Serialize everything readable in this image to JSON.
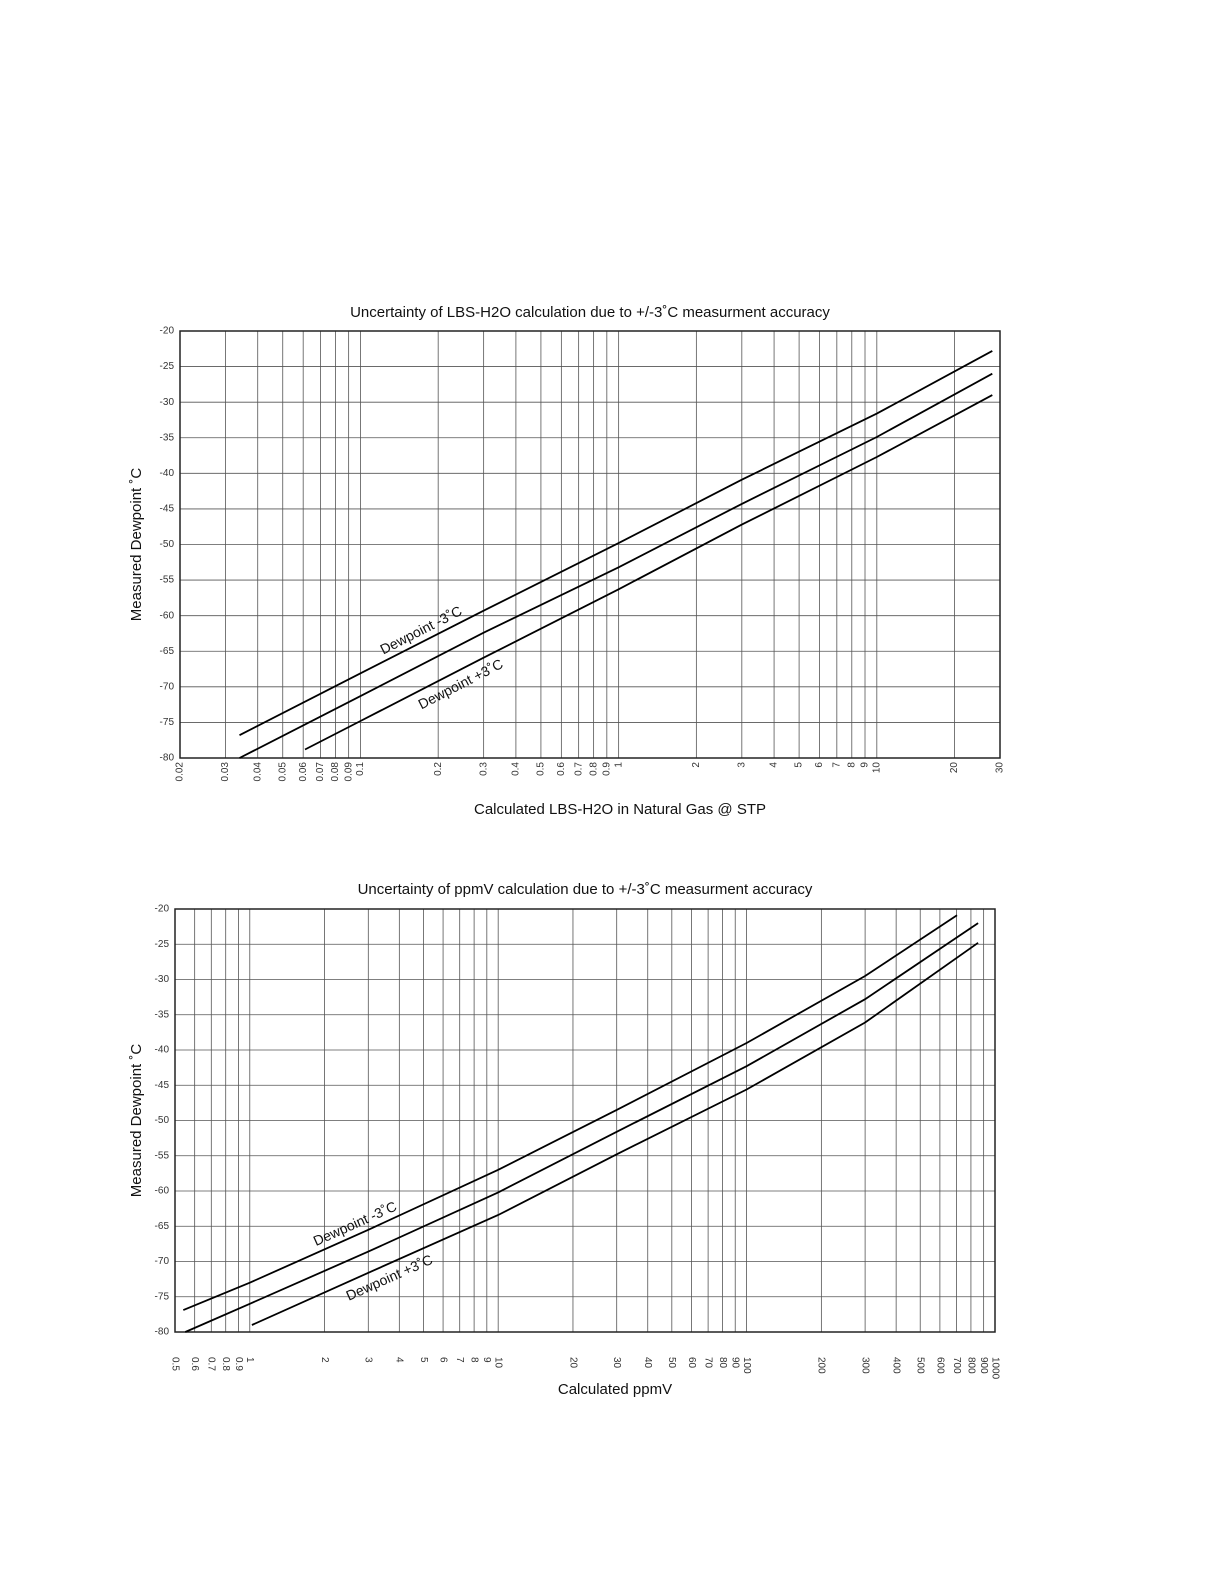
{
  "chart_data": [
    {
      "type": "line",
      "title": "Uncertainty of LBS-H2O calculation due to +/-3˚C measurment accuracy",
      "x_label": "Calculated LBS-H2O in Natural Gas @ STP",
      "y_label": "Measured Dewpoint ˚C",
      "xscale": "log",
      "grid": true,
      "xlim": [
        0.02,
        30
      ],
      "ylim": [
        -80,
        -20
      ],
      "xticks": [
        0.02,
        0.03,
        0.04,
        0.05,
        0.06,
        0.07,
        0.08,
        0.09,
        0.1,
        0.2,
        0.3,
        0.4,
        0.5,
        0.6,
        0.7,
        0.8,
        0.9,
        1,
        2,
        3,
        4,
        5,
        6,
        7,
        8,
        9,
        10,
        20,
        30
      ],
      "yticks": [
        -80,
        -75,
        -70,
        -65,
        -60,
        -55,
        -50,
        -45,
        -40,
        -35,
        -30,
        -25,
        -20
      ],
      "series": [
        {
          "label": "Dewpoint -3˚C",
          "color": "#000000",
          "x": [
            0.034,
            0.1,
            0.3,
            1,
            3,
            10,
            28
          ],
          "values": [
            -76.8,
            -68.1,
            -59.3,
            -49.8,
            -40.9,
            -31.6,
            -22.8
          ]
        },
        {
          "color": "#000000",
          "x": [
            0.034,
            0.1,
            0.3,
            1,
            3,
            10,
            28
          ],
          "values": [
            -80,
            -71.3,
            -62.4,
            -53.2,
            -44.3,
            -34.9,
            -26.0
          ]
        },
        {
          "label": "Dewpoint +3˚C",
          "color": "#000000",
          "x": [
            0.061,
            0.1,
            0.3,
            1,
            3,
            10,
            28
          ],
          "values": [
            -78.8,
            -74.8,
            -65.9,
            -56.3,
            -47.2,
            -37.7,
            -29.0
          ]
        }
      ]
    },
    {
      "type": "line",
      "title": "Uncertainty of ppmV calculation due to +/-3˚C measurment accuracy",
      "x_label": "Calculated ppmV",
      "y_label": "Measured Dewpoint ˚C",
      "xscale": "log",
      "grid": true,
      "xlim": [
        0.5,
        1000
      ],
      "ylim": [
        -80,
        -20
      ],
      "xticks": [
        0.5,
        0.6,
        0.7,
        0.8,
        0.9,
        1,
        2,
        3,
        4,
        5,
        6,
        7,
        8,
        9,
        10,
        20,
        30,
        40,
        50,
        60,
        70,
        80,
        90,
        100,
        200,
        300,
        400,
        500,
        600,
        700,
        800,
        900,
        1000
      ],
      "yticks": [
        -80,
        -75,
        -70,
        -65,
        -60,
        -55,
        -50,
        -45,
        -40,
        -35,
        -30,
        -25,
        -20
      ],
      "series": [
        {
          "label": "Dewpoint -3˚C",
          "color": "#000000",
          "x": [
            0.54,
            1,
            3,
            10,
            30,
            100,
            300,
            703
          ],
          "values": [
            -76.9,
            -73.0,
            -65.5,
            -57.0,
            -48.5,
            -39.0,
            -29.5,
            -20.9
          ]
        },
        {
          "color": "#000000",
          "x": [
            0.55,
            1,
            3,
            10,
            30,
            100,
            300,
            855
          ],
          "values": [
            -80,
            -76.0,
            -68.6,
            -60.2,
            -51.6,
            -42.3,
            -32.8,
            -22.0
          ]
        },
        {
          "label": "Dewpoint +3˚C",
          "color": "#000000",
          "x": [
            1.02,
            3,
            10,
            30,
            100,
            300,
            855
          ],
          "values": [
            -79.0,
            -71.6,
            -63.4,
            -54.8,
            -45.6,
            -36.1,
            -24.8
          ]
        }
      ]
    }
  ]
}
